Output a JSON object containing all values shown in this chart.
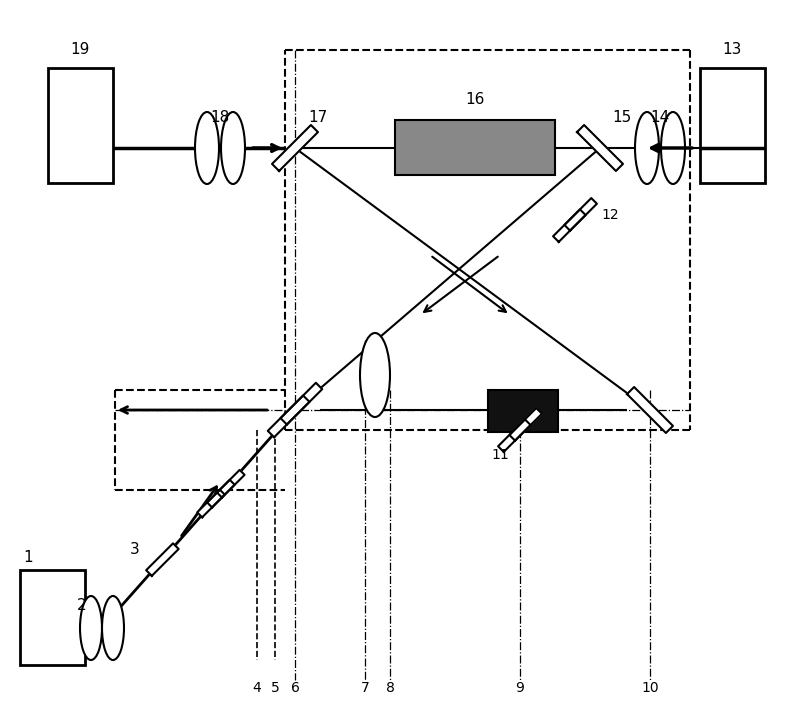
{
  "fig_width": 8.0,
  "fig_height": 7.12,
  "bg_color": "#ffffff"
}
